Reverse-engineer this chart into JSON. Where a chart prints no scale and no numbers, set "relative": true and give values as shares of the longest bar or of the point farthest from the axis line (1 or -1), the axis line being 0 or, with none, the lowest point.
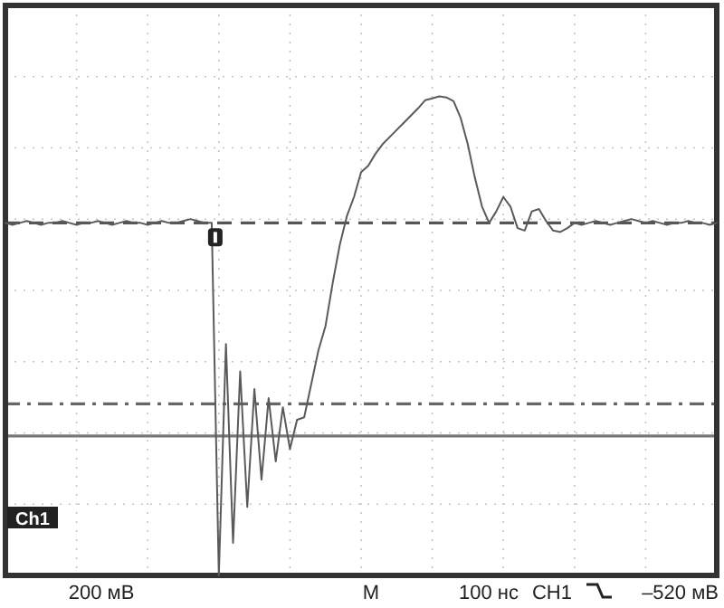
{
  "chart_data": {
    "type": "line",
    "relative": true,
    "categories": [
      null,
      null,
      null,
      null,
      null,
      null,
      null,
      null,
      null,
      null,
      null,
      null,
      null,
      null,
      null,
      null,
      null,
      null,
      null,
      null,
      null,
      null,
      null,
      null,
      null,
      null,
      null,
      null,
      null,
      null,
      null,
      null,
      null,
      null,
      null,
      null,
      null,
      null,
      null,
      null,
      null,
      null,
      null,
      null,
      null,
      null,
      null,
      null,
      null,
      null,
      null,
      null,
      null,
      null,
      null,
      null,
      null,
      null,
      null,
      null,
      null,
      null,
      null,
      null,
      null,
      null,
      null,
      null,
      null,
      null,
      null,
      null,
      null,
      null,
      null,
      null,
      null,
      null,
      null,
      null,
      null,
      null,
      null,
      null,
      null,
      null,
      null,
      null,
      null,
      null,
      null,
      null,
      null,
      null,
      null,
      null,
      null,
      null,
      null,
      null,
      null
    ],
    "grid": true,
    "series": [
      {
        "color": "#5a5a5a",
        "values": [
          0.736,
          0.732,
          0.736,
          0.74,
          0.736,
          0.732,
          0.736,
          0.736,
          0.74,
          0.736,
          0.732,
          0.736,
          0.736,
          0.74,
          0.736,
          0.732,
          0.736,
          0.74,
          0.736,
          0.736,
          0.732,
          0.736,
          0.74,
          0.736,
          0.736,
          0.74,
          0.744,
          0.74,
          0.736,
          0.736,
          0,
          0.483,
          0.068,
          0.426,
          0.143,
          0.389,
          0.2,
          0.37,
          0.238,
          0.351,
          0.264,
          0.325,
          0.33,
          0.4,
          0.47,
          0.521,
          0.61,
          0.69,
          0.75,
          0.79,
          0.842,
          0.855,
          0.88,
          0.9,
          0.915,
          0.93,
          0.945,
          0.96,
          0.975,
          0.992,
          0.996,
          1,
          0.998,
          0.99,
          0.955,
          0.9,
          0.83,
          0.77,
          0.736,
          0.76,
          0.79,
          0.77,
          0.725,
          0.72,
          0.76,
          0.765,
          0.74,
          0.72,
          0.717,
          0.725,
          0.736,
          0.732,
          0.736,
          0.74,
          0.736,
          0.732,
          0.736,
          0.74,
          0.744,
          0.74,
          0.736,
          0.74,
          0.736,
          0.732,
          0.736,
          0.736,
          0.74,
          0.736,
          0.736,
          0.732,
          0.736
        ]
      }
    ],
    "ref_lines": [
      {
        "axis": "y",
        "value": 0.736,
        "color": "#555555",
        "line_style": "dashed"
      },
      {
        "axis": "y",
        "value": 0.358,
        "color": "#666666",
        "line_style": "dashdot"
      },
      {
        "axis": "y",
        "value": 0.291,
        "color": "#777777",
        "line_style": "solid"
      }
    ],
    "annotations": [
      "200 мВ",
      "M",
      "100 нс",
      "CH1",
      "–520 мВ",
      "Ch1"
    ]
  }
}
